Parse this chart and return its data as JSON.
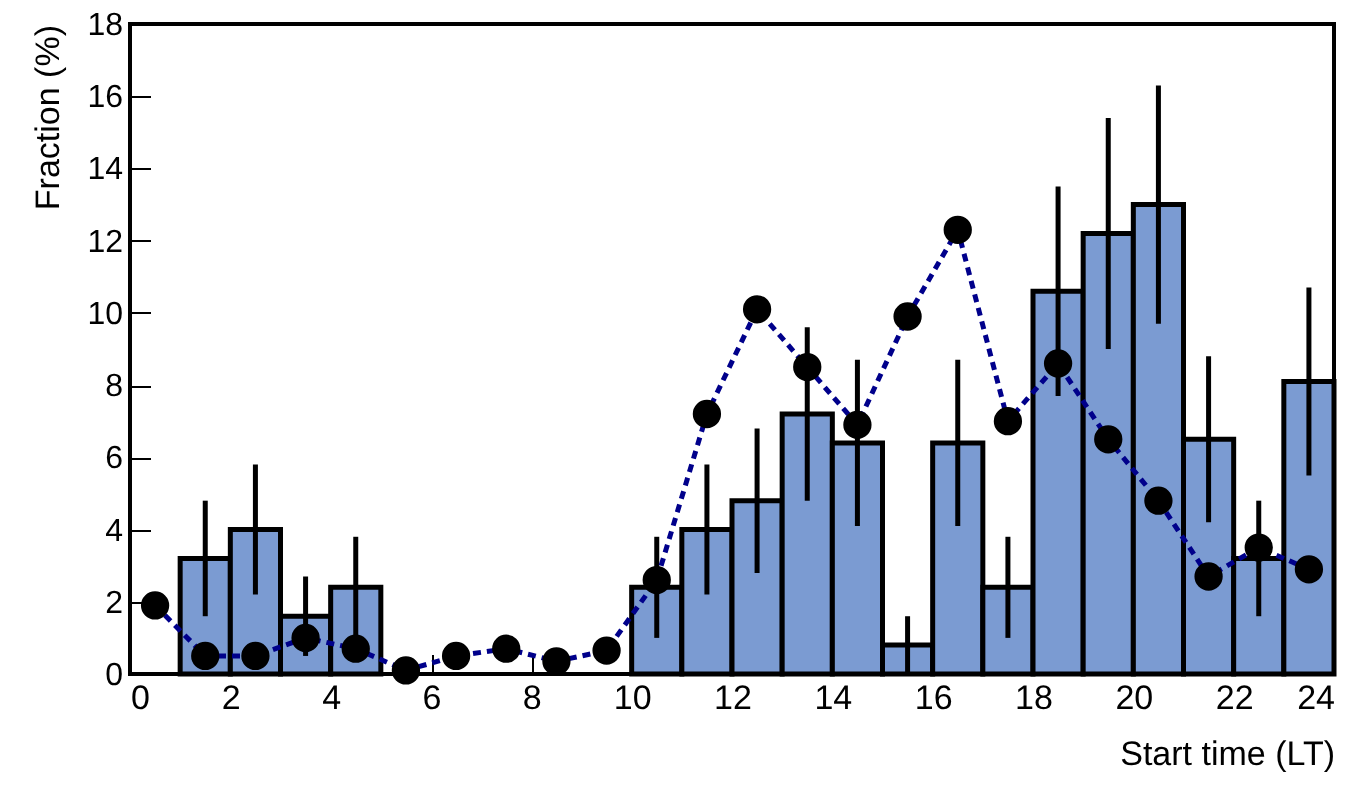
{
  "chart_data": {
    "type": "histogram",
    "xlabel": "Start time (LT)",
    "ylabel": "Fraction (%)",
    "bins": [
      0,
      1,
      2,
      3,
      4,
      5,
      6,
      7,
      8,
      9,
      10,
      11,
      12,
      13,
      14,
      15,
      16,
      17,
      18,
      19,
      20,
      21,
      22,
      23,
      24
    ],
    "series": [
      {
        "color": "#7b9bd2",
        "values": [
          0,
          3.2,
          4.0,
          1.6,
          2.4,
          0,
          0,
          0,
          0,
          0,
          2.4,
          4.0,
          4.8,
          7.2,
          6.4,
          0.8,
          6.4,
          2.4,
          10.6,
          12.2,
          13.0,
          6.5,
          3.2,
          8.1
        ],
        "errors": [
          null,
          1.6,
          1.8,
          1.1,
          1.4,
          null,
          null,
          null,
          null,
          null,
          1.4,
          1.8,
          2.0,
          2.4,
          2.3,
          0.8,
          2.3,
          1.4,
          2.9,
          3.2,
          3.3,
          2.3,
          1.6,
          2.6
        ]
      },
      {
        "type": "line",
        "color": "#00008b",
        "marker": "circle",
        "line_style": "dashed",
        "x": [
          0.5,
          1.5,
          2.5,
          3.5,
          4.5,
          5.5,
          6.5,
          7.5,
          8.5,
          9.5,
          10.5,
          11.5,
          12.5,
          13.5,
          14.5,
          15.5,
          16.5,
          17.5,
          18.5,
          19.5,
          20.5,
          21.5,
          22.5,
          23.5
        ],
        "values": [
          1.9,
          0.5,
          0.5,
          1.0,
          0.7,
          0.1,
          0.5,
          0.7,
          0.35,
          0.65,
          2.6,
          7.2,
          10.1,
          8.5,
          6.9,
          9.9,
          12.3,
          7.0,
          8.6,
          6.5,
          4.8,
          2.7,
          3.5,
          2.9
        ]
      }
    ],
    "xlim": [
      0,
      24
    ],
    "xticks": [
      0,
      2,
      4,
      6,
      8,
      10,
      12,
      14,
      16,
      18,
      20,
      22,
      24
    ],
    "ylim": [
      0,
      18
    ],
    "yticks": [
      0,
      2,
      4,
      6,
      8,
      10,
      12,
      14,
      16,
      18
    ],
    "grid": false
  }
}
